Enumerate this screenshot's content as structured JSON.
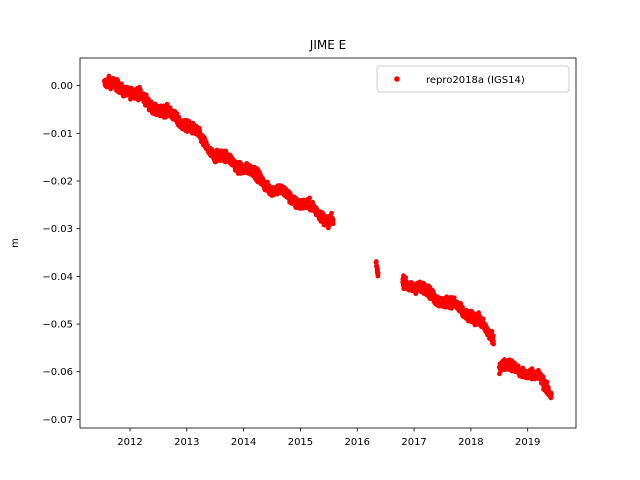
{
  "chart_data": {
    "type": "scatter",
    "title": "JIME E",
    "xlabel": "",
    "ylabel": "m",
    "xlim": [
      2011.12,
      2019.85
    ],
    "ylim": [
      -0.0718,
      0.0058
    ],
    "grid": false,
    "legend_position": "top-right",
    "x_ticks": [
      2012,
      2013,
      2014,
      2015,
      2016,
      2017,
      2018,
      2019
    ],
    "x_tick_labels": [
      "2012",
      "2013",
      "2014",
      "2015",
      "2016",
      "2017",
      "2018",
      "2019"
    ],
    "y_ticks": [
      0.0,
      -0.01,
      -0.02,
      -0.03,
      -0.04,
      -0.05,
      -0.06,
      -0.07
    ],
    "y_tick_labels": [
      "0.00",
      "−0.01",
      "−0.02",
      "−0.03",
      "−0.04",
      "−0.05",
      "−0.06",
      "−0.07"
    ],
    "series": [
      {
        "name": "repro2018a (IGS14)",
        "color": "#ff0000",
        "marker": "circle",
        "segments": [
          {
            "x_range": [
              2011.55,
              2015.58
            ],
            "trend": [
              [
                2011.55,
                0.0005
              ],
              [
                2012.0,
                -0.001
              ],
              [
                2012.5,
                -0.005
              ],
              [
                2013.0,
                -0.008
              ],
              [
                2013.5,
                -0.0145
              ],
              [
                2014.0,
                -0.017
              ],
              [
                2014.5,
                -0.0215
              ],
              [
                2015.0,
                -0.0245
              ],
              [
                2015.58,
                -0.0285
              ]
            ],
            "spread": 0.0022
          },
          {
            "x_range": [
              2016.33,
              2016.37
            ],
            "trend": [
              [
                2016.33,
                -0.037
              ],
              [
                2016.37,
                -0.0395
              ]
            ],
            "spread": 0.0012
          },
          {
            "x_range": [
              2016.8,
              2018.4
            ],
            "trend": [
              [
                2016.8,
                -0.041
              ],
              [
                2017.0,
                -0.042
              ],
              [
                2017.5,
                -0.045
              ],
              [
                2018.0,
                -0.048
              ],
              [
                2018.4,
                -0.053
              ]
            ],
            "spread": 0.0022
          },
          {
            "x_range": [
              2018.5,
              2019.42
            ],
            "trend": [
              [
                2018.5,
                -0.0585
              ],
              [
                2018.8,
                -0.0595
              ],
              [
                2019.0,
                -0.06
              ],
              [
                2019.2,
                -0.0615
              ],
              [
                2019.42,
                -0.0645
              ]
            ],
            "spread": 0.0022
          }
        ]
      }
    ]
  }
}
